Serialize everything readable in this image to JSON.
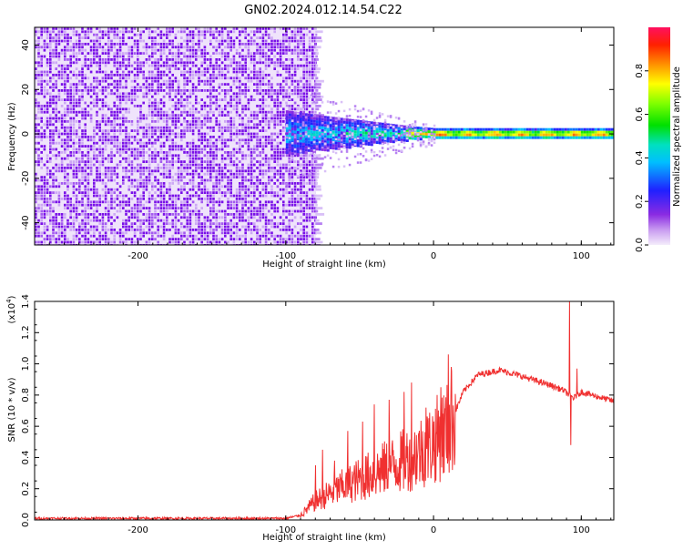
{
  "title": "GN02.2024.012.14.54.C22",
  "chart_data": [
    {
      "type": "heatmap",
      "xlabel": "Height of straight line (km)",
      "ylabel": "Frequency (Hz)",
      "xlim": [
        -270,
        122
      ],
      "ylim": [
        -50,
        48
      ],
      "xticks": [
        "-200",
        "-100",
        "0",
        "100"
      ],
      "yticks": [
        "-40",
        "-20",
        "0",
        "20",
        "40"
      ],
      "noise_region_x": [
        -270,
        -80
      ],
      "signal_region_x": [
        -100,
        122
      ],
      "signal_center_hz": 0,
      "grid": false,
      "colorbar": {
        "label": "Normalized spectral amplitude",
        "range": [
          0.0,
          1.0
        ],
        "ticks": [
          "0.0",
          "0.2",
          "0.4",
          "0.6",
          "0.8"
        ],
        "position": "right"
      }
    },
    {
      "type": "line",
      "xlabel": "Height of straight line (km)",
      "ylabel": "SNR (10 * v/v)",
      "yscale_label": "(x10",
      "yscale_exp": "4",
      "yscale_close": ")",
      "xlim": [
        -270,
        122
      ],
      "ylim": [
        0.0,
        1.4
      ],
      "xticks": [
        "-200",
        "-100",
        "0",
        "100"
      ],
      "yticks": [
        "0.0",
        "0.2",
        "0.4",
        "0.6",
        "0.8",
        "1.0",
        "1.2",
        "1.4"
      ],
      "color": "#f03030",
      "grid": false,
      "envelope": {
        "x": [
          -270,
          -100,
          -90,
          -80,
          -60,
          -40,
          -20,
          -5,
          10,
          20,
          30,
          45,
          60,
          80,
          88,
          92,
          95,
          100,
          122
        ],
        "y": [
          0.01,
          0.01,
          0.03,
          0.12,
          0.22,
          0.3,
          0.38,
          0.46,
          0.58,
          0.82,
          0.93,
          0.96,
          0.92,
          0.86,
          0.83,
          0.8,
          0.78,
          0.82,
          0.76
        ]
      },
      "spikes": [
        {
          "x": -80,
          "y": 0.35
        },
        {
          "x": -75,
          "y": 0.45
        },
        {
          "x": -67,
          "y": 0.38
        },
        {
          "x": -58,
          "y": 0.57
        },
        {
          "x": -48,
          "y": 0.63
        },
        {
          "x": -40,
          "y": 0.74
        },
        {
          "x": -30,
          "y": 0.77
        },
        {
          "x": -20,
          "y": 0.82
        },
        {
          "x": -15,
          "y": 0.88
        },
        {
          "x": -5,
          "y": 0.72
        },
        {
          "x": 5,
          "y": 0.85
        },
        {
          "x": 10,
          "y": 1.06
        },
        {
          "x": 12,
          "y": 0.98
        },
        {
          "x": 92,
          "y": 1.4
        },
        {
          "x": 93,
          "y": 0.48
        },
        {
          "x": 97,
          "y": 0.97
        }
      ]
    }
  ]
}
